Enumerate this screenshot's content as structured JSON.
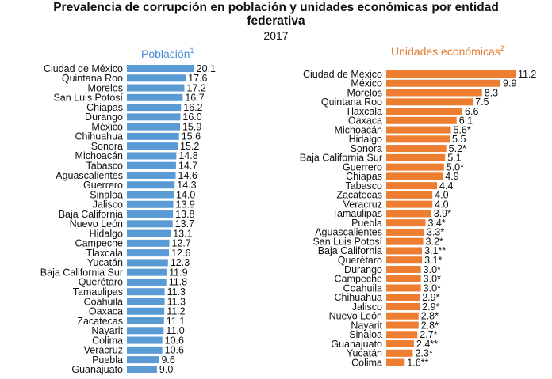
{
  "header": {
    "title_line1": "Prevalencia de corrupción en población y unidades económicas por entidad",
    "title_line2": "federativa",
    "year": "2017"
  },
  "colors": {
    "poblacion": "#5b9bd5",
    "unidades": "#ed7d31"
  },
  "chart_data": [
    {
      "type": "bar",
      "orientation": "horizontal",
      "title": "Población",
      "title_superscript": "1",
      "categories": [
        "Ciudad de México",
        "Quintana Roo",
        "Morelos",
        "San Luis Potosí",
        "Chiapas",
        "Durango",
        "México",
        "Chihuahua",
        "Sonora",
        "Michoacán",
        "Tabasco",
        "Aguascalientes",
        "Guerrero",
        "Sinaloa",
        "Jalisco",
        "Baja California",
        "Nuevo León",
        "Hidalgo",
        "Campeche",
        "Tlaxcala",
        "Yucatán",
        "Baja California Sur",
        "Querétaro",
        "Tamaulipas",
        "Coahuila",
        "Oaxaca",
        "Zacatecas",
        "Nayarit",
        "Colima",
        "Veracruz",
        "Puebla",
        "Guanajuato"
      ],
      "values": [
        20.1,
        17.6,
        17.2,
        16.7,
        16.2,
        16.0,
        15.9,
        15.6,
        15.2,
        14.8,
        14.7,
        14.6,
        14.3,
        14.0,
        13.9,
        13.8,
        13.7,
        13.1,
        12.7,
        12.6,
        12.3,
        11.9,
        11.8,
        11.3,
        11.3,
        11.2,
        11.1,
        11.0,
        10.6,
        10.6,
        9.6,
        9.0
      ],
      "labels": [
        "20.1",
        "17.6",
        "17.2",
        "16.7",
        "16.2",
        "16.0",
        "15.9",
        "15.6",
        "15.2",
        "14.8",
        "14.7",
        "14.6",
        "14.3",
        "14.0",
        "13.9",
        "13.8",
        "13.7",
        "13.1",
        "12.7",
        "12.6",
        "12.3",
        "11.9",
        "11.8",
        "11.3",
        "11.3",
        "11.2",
        "11.1",
        "11.0",
        "10.6",
        "10.6",
        "9.6",
        "9.0"
      ]
    },
    {
      "type": "bar",
      "orientation": "horizontal",
      "title": "Unidades económicas",
      "title_superscript": "2",
      "categories": [
        "Ciudad de México",
        "México",
        "Morelos",
        "Quintana Roo",
        "Tlaxcala",
        "Oaxaca",
        "Michoacán",
        "Hidalgo",
        "Sonora",
        "Baja California Sur",
        "Guerrero",
        "Chiapas",
        "Tabasco",
        "Zacatecas",
        "Veracruz",
        "Tamaulipas",
        "Puebla",
        "Aguascalientes",
        "San Luis Potosí",
        "Baja California",
        "Querétaro",
        "Durango",
        "Campeche",
        "Coahuila",
        "Chihuahua",
        "Jalisco",
        "Nuevo León",
        "Nayarit",
        "Sinaloa",
        "Guanajuato",
        "Yucatán",
        "Colima"
      ],
      "values": [
        11.2,
        9.9,
        8.3,
        7.5,
        6.6,
        6.1,
        5.6,
        5.5,
        5.2,
        5.1,
        5.0,
        4.9,
        4.4,
        4.0,
        4.0,
        3.9,
        3.4,
        3.3,
        3.2,
        3.1,
        3.1,
        3.0,
        3.0,
        3.0,
        2.9,
        2.9,
        2.8,
        2.8,
        2.7,
        2.4,
        2.3,
        1.6
      ],
      "labels": [
        "11.2",
        "9.9",
        "8.3",
        "7.5",
        "6.6",
        "6.1",
        "5.6*",
        "5.5",
        "5.2*",
        "5.1",
        "5.0*",
        "4.9",
        "4.4",
        "4.0",
        "4.0",
        "3.9*",
        "3.4*",
        "3.3*",
        "3.2*",
        "3.1**",
        "3.1*",
        "3.0*",
        "3.0*",
        "3.0*",
        "2.9*",
        "2.9*",
        "2.8*",
        "2.8*",
        "2.7*",
        "2.4**",
        "2.3*",
        "1.6**"
      ]
    }
  ]
}
